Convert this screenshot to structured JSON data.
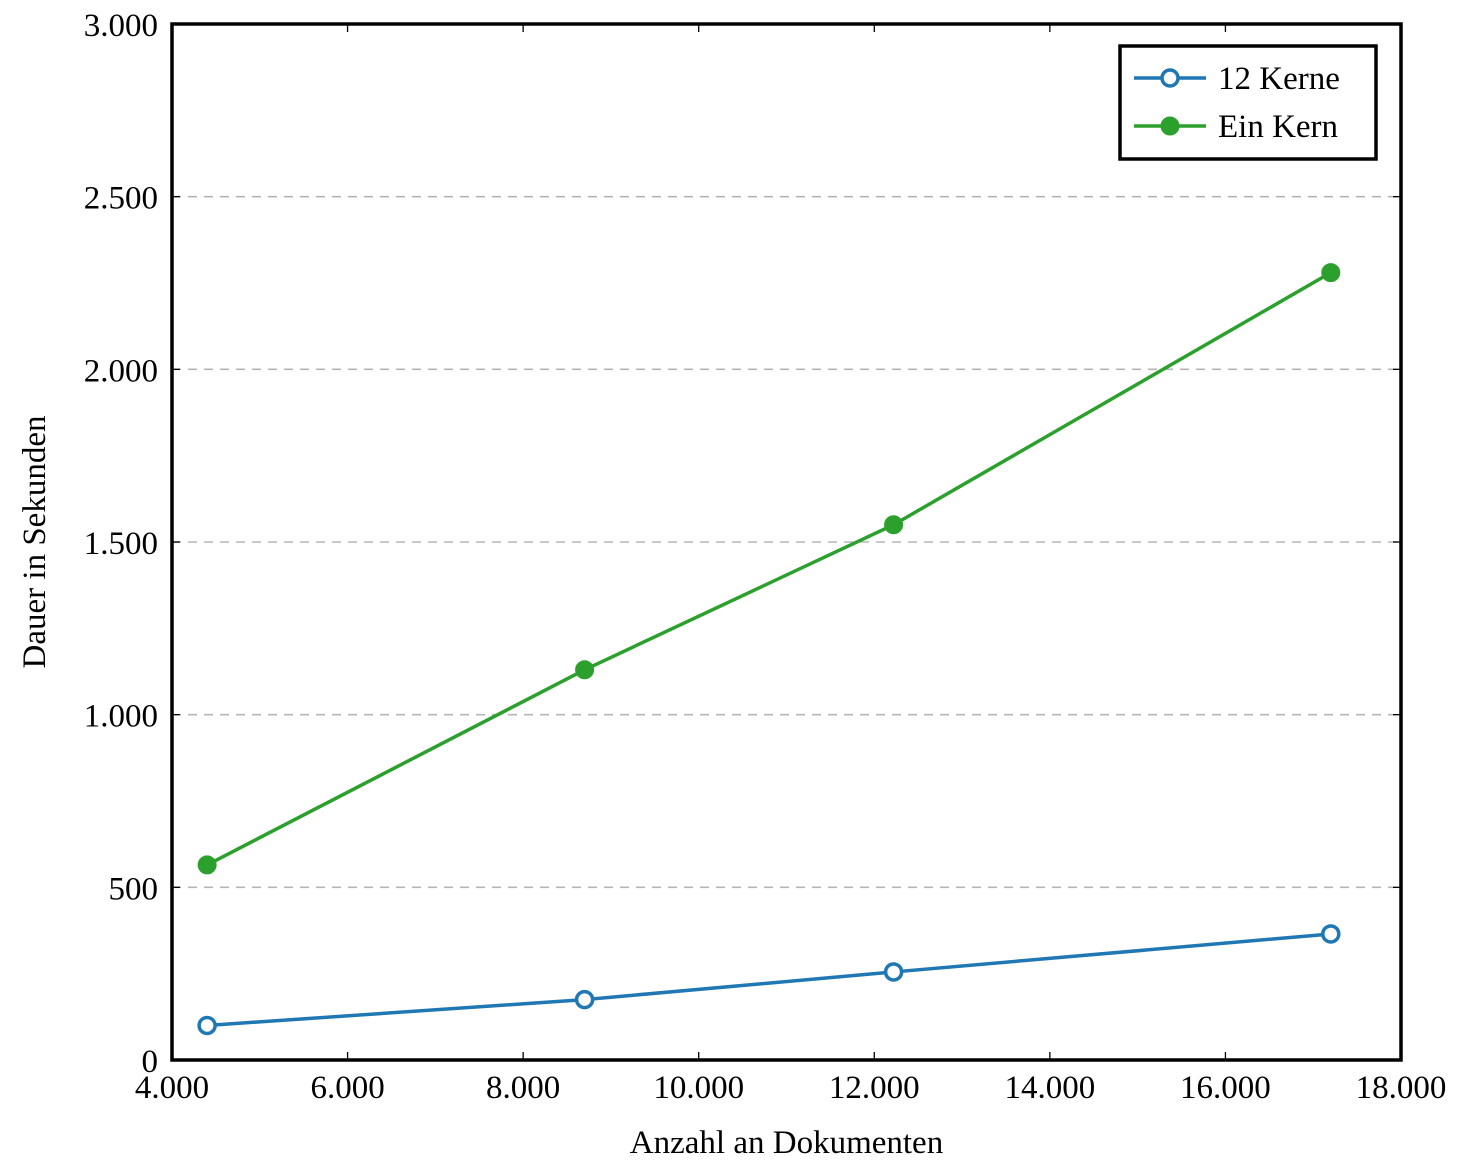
{
  "chart_data": {
    "type": "line",
    "title": "",
    "xlabel": "Anzahl an Dokumenten",
    "ylabel": "Dauer in Sekunden",
    "xlim": [
      4000,
      18000
    ],
    "ylim": [
      0,
      3000
    ],
    "x_ticks": [
      4000,
      6000,
      8000,
      10000,
      12000,
      14000,
      16000,
      18000
    ],
    "y_ticks": [
      0,
      500,
      1000,
      1500,
      2000,
      2500,
      3000
    ],
    "x_tick_labels": [
      "4.000",
      "6.000",
      "8.000",
      "10.000",
      "12.000",
      "14.000",
      "16.000",
      "18.000"
    ],
    "y_tick_labels": [
      "0",
      "500",
      "1.000",
      "1.500",
      "2.000",
      "2.500",
      "3.000"
    ],
    "grid": "horizontal-dashed",
    "legend": "top-right",
    "series": [
      {
        "name": "12 Kerne",
        "color": "#1f77b4",
        "marker": "open-circle",
        "x": [
          4400,
          8700,
          12220,
          17200
        ],
        "y": [
          100,
          175,
          255,
          365
        ]
      },
      {
        "name": "Ein Kern",
        "color": "#2ca02c",
        "marker": "filled-circle",
        "x": [
          4400,
          8700,
          12220,
          17200
        ],
        "y": [
          565,
          1130,
          1550,
          2280
        ]
      }
    ]
  }
}
